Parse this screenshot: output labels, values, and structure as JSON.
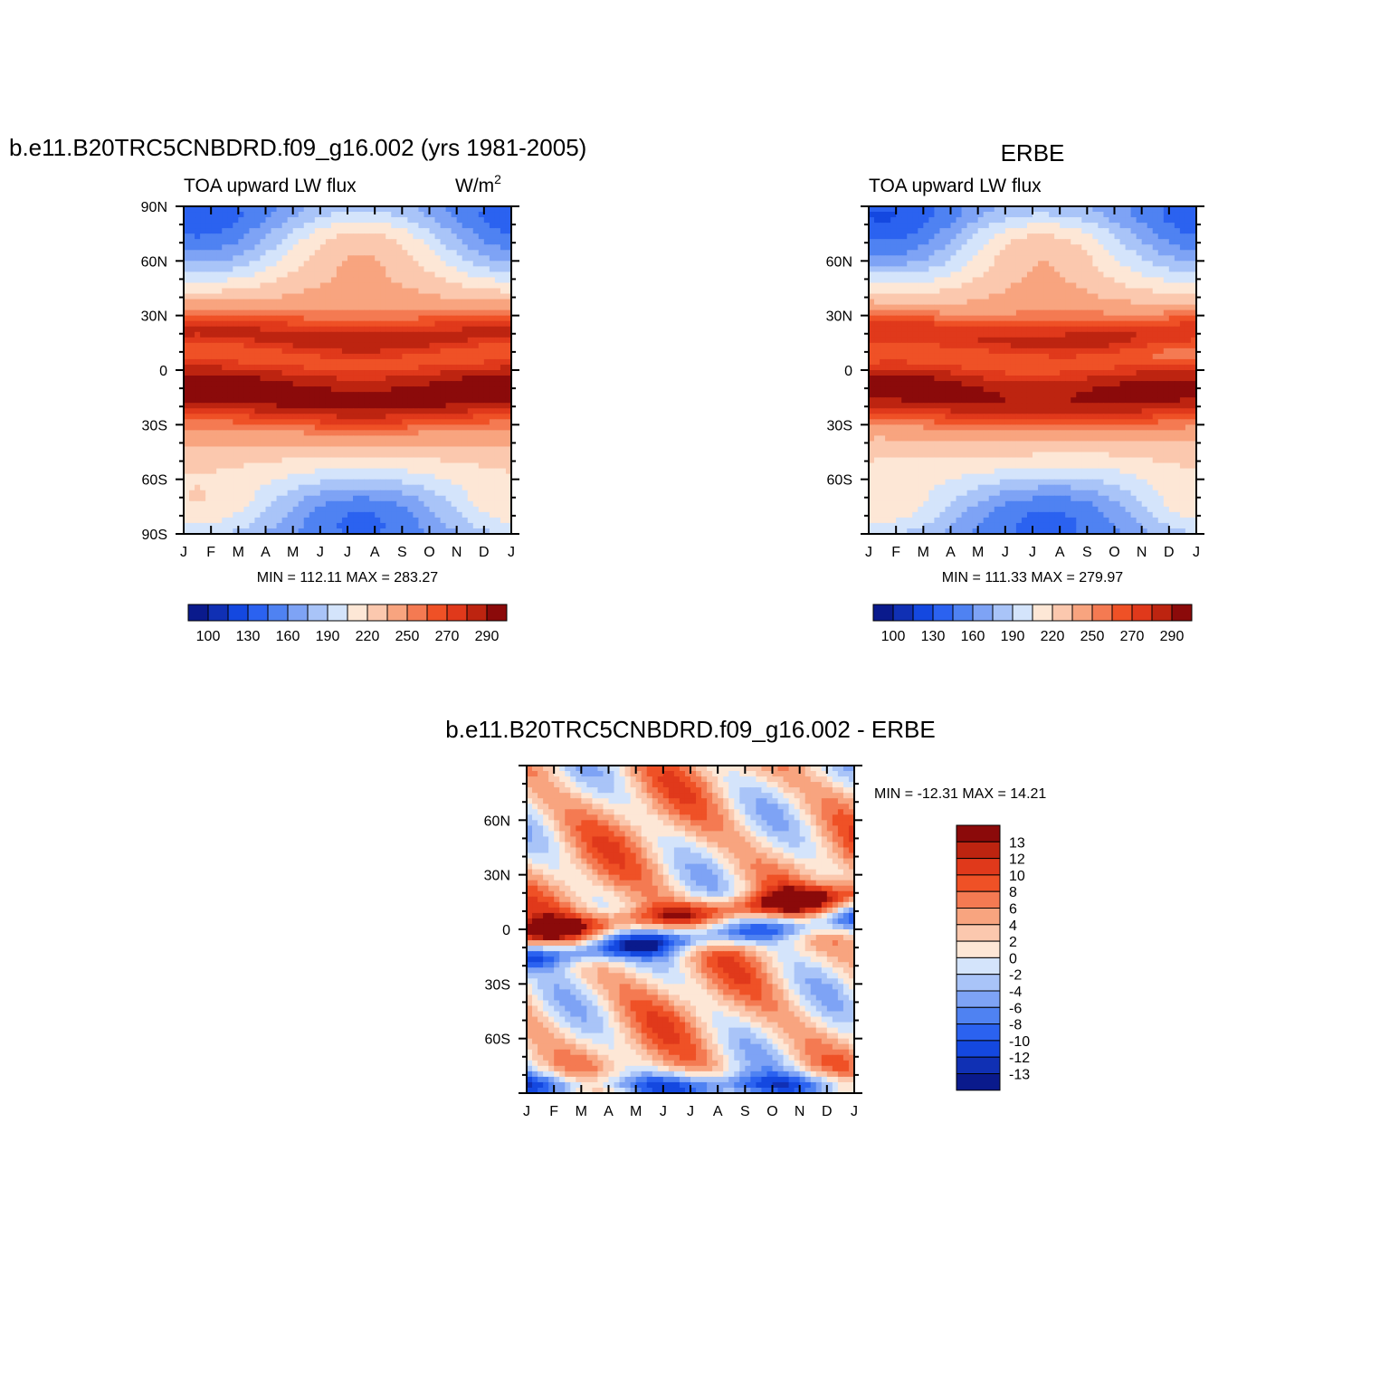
{
  "chart_data": [
    {
      "type": "heatmap",
      "id": "model",
      "title": "b.e11.B20TRC5CNBDRD.f09_g16.002 (yrs 1981-2005)",
      "subtitle_left": "TOA upward LW flux",
      "units_base": "W/m",
      "units_exp": "2",
      "xlabels": [
        "J",
        "F",
        "M",
        "A",
        "M",
        "J",
        "J",
        "A",
        "S",
        "O",
        "N",
        "D",
        "J"
      ],
      "ylabels": [
        "90N",
        "60N",
        "30N",
        "0",
        "30S",
        "60S",
        "90S"
      ],
      "ylim": [
        -90,
        90
      ],
      "minmax_text": "MIN = 112.11 MAX = 283.27",
      "min": 112.11,
      "max": 283.27,
      "colorbar_labels": [
        "100",
        "130",
        "160",
        "190",
        "220",
        "250",
        "270",
        "290"
      ]
    },
    {
      "type": "heatmap",
      "id": "obs",
      "title": "ERBE",
      "subtitle_left": "TOA upward LW flux",
      "xlabels": [
        "J",
        "F",
        "M",
        "A",
        "M",
        "J",
        "J",
        "A",
        "S",
        "O",
        "N",
        "D",
        "J"
      ],
      "ylabels": [
        "60N",
        "30N",
        "0",
        "30S",
        "60S"
      ],
      "ylim": [
        -90,
        90
      ],
      "minmax_text": "MIN = 111.33 MAX = 279.97",
      "min": 111.33,
      "max": 279.97,
      "colorbar_labels": [
        "100",
        "130",
        "160",
        "190",
        "220",
        "250",
        "270",
        "290"
      ]
    },
    {
      "type": "heatmap",
      "id": "diff",
      "title": "b.e11.B20TRC5CNBDRD.f09_g16.002 - ERBE",
      "xlabels": [
        "J",
        "F",
        "M",
        "A",
        "M",
        "J",
        "J",
        "A",
        "S",
        "O",
        "N",
        "D",
        "J"
      ],
      "ylabels": [
        "60N",
        "30N",
        "0",
        "30S",
        "60S"
      ],
      "ylim": [
        -90,
        90
      ],
      "minmax_text": "MIN = -12.31 MAX =  14.21",
      "min": -12.31,
      "max": 14.21,
      "colorbar_labels": [
        "13",
        "12",
        "10",
        "8",
        "6",
        "4",
        "2",
        "0",
        "-2",
        "-4",
        "-6",
        "-8",
        "-10",
        "-12",
        "-13"
      ]
    }
  ],
  "palette": [
    "#0a1a8c",
    "#1030b4",
    "#1448e0",
    "#2b62f0",
    "#4f82f2",
    "#7ea3f5",
    "#a9c4f8",
    "#d4e4fb",
    "#fde7d6",
    "#fbc8ae",
    "#f8a47f",
    "#f47a52",
    "#ef5126",
    "#e0391b",
    "#bd2410",
    "#8b0a0a"
  ]
}
